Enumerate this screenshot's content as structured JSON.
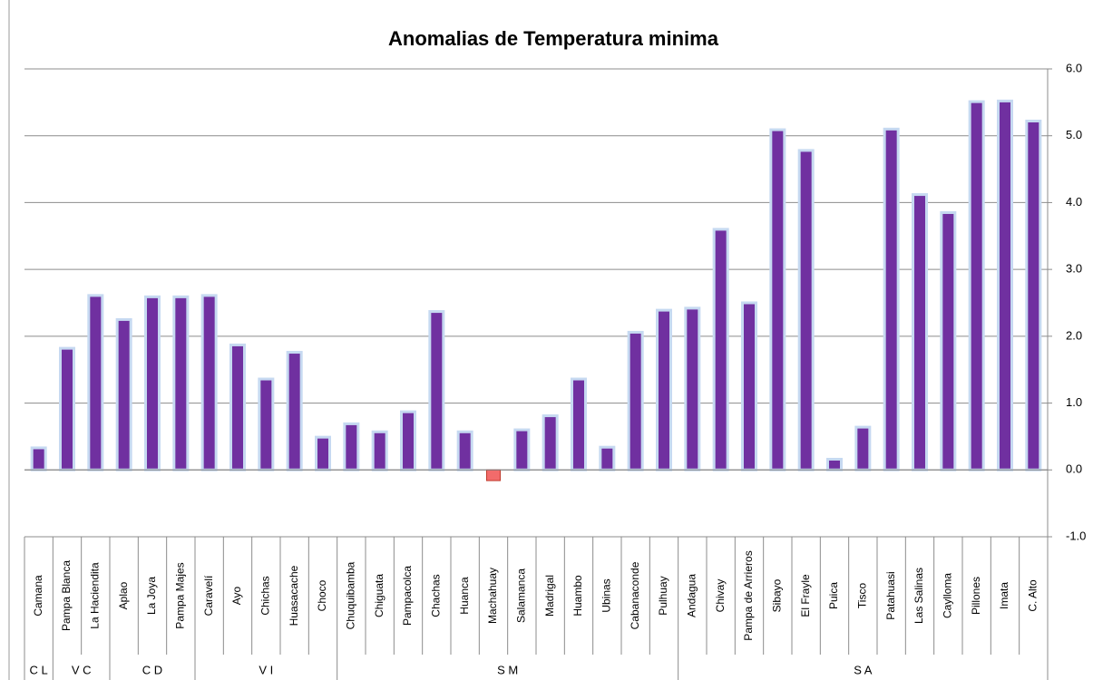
{
  "chart_data": {
    "type": "bar",
    "title": "Anomalias de Temperatura minima",
    "groups": [
      {
        "label": "C L",
        "categories": [
          "Camana"
        ]
      },
      {
        "label": "V C",
        "categories": [
          "Pampa Blanca",
          "La Haciendita"
        ]
      },
      {
        "label": "C D",
        "categories": [
          "Aplao",
          "La Joya",
          "Pampa Majes"
        ]
      },
      {
        "label": "V I",
        "categories": [
          "Caravelí",
          "Ayo",
          "Chichas",
          "Huasacache",
          "Choco"
        ]
      },
      {
        "label": "S M",
        "categories": [
          "Chuquibamba",
          "Chiguata",
          "Pampacolca",
          "Chachas",
          "Huanca",
          "Machahuay",
          "Salamanca",
          "Madrigal",
          "Huambo",
          "Ubinas",
          "Cabanaconde",
          "Pulhuay"
        ]
      },
      {
        "label": "S A",
        "categories": [
          "Andagua",
          "Chivay",
          "Pampa de Arrieros",
          "Sibayo",
          "El Frayle",
          "Puica",
          "Tisco",
          "Patahuasi",
          "Las Salinas",
          "Caylloma",
          "Pillones",
          "Imata",
          "C. Alto"
        ]
      }
    ],
    "values": [
      0.33,
      1.82,
      2.61,
      2.25,
      2.59,
      2.59,
      2.61,
      1.87,
      1.36,
      1.76,
      0.49,
      0.69,
      0.57,
      0.87,
      2.37,
      0.57,
      -0.16,
      0.6,
      0.81,
      1.36,
      0.34,
      2.06,
      2.39,
      2.42,
      3.6,
      2.5,
      5.09,
      4.78,
      0.16,
      0.64,
      5.1,
      4.12,
      3.85,
      5.51,
      5.52,
      5.22
    ],
    "color": "#7030a0",
    "negative_color": "#f26b6b",
    "ylim": [
      -1,
      6
    ],
    "yticks": [
      {
        "value": -1,
        "label": "-1.0"
      },
      {
        "value": 0,
        "label": "0.0"
      },
      {
        "value": 1,
        "label": "1.0"
      },
      {
        "value": 2,
        "label": "2.0"
      },
      {
        "value": 3,
        "label": "3.0"
      },
      {
        "value": 4,
        "label": "4.0"
      },
      {
        "value": 5,
        "label": "5.0"
      },
      {
        "value": 6,
        "label": "6.0"
      }
    ],
    "grid": true
  }
}
